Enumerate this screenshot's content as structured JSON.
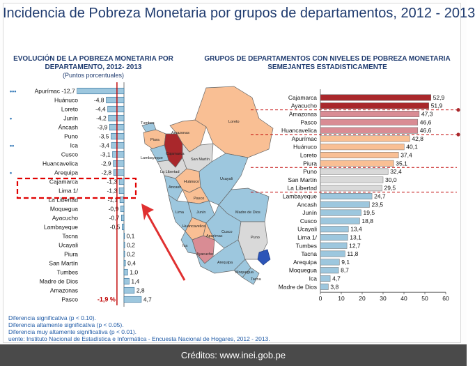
{
  "title": "Incidencia de Pobreza Monetaria por grupos de departamentos, 2012 - 2013",
  "credits": "Créditos: www.inei.gob.pe",
  "colors": {
    "title": "#1f3b6f",
    "bar_blue": "#9dc7de",
    "bar_border": "#2e6c96",
    "marker_red": "#c00000",
    "map_blue": "#9dc7de",
    "map_orange": "#f9bf94",
    "map_pink": "#d98c94",
    "map_dark_blue": "#2c55b8",
    "group_dark_red": "#a9272b",
    "group_pink": "#d98c94",
    "group_orange": "#f9bf94",
    "group_grey": "#d9d9d9",
    "group_blue": "#9dc7de"
  },
  "notes": {
    "n1": "Diferencia significativa (p < 0.10).",
    "n2": "Diferencia altamente significativa (p < 0.05).",
    "n3": "Diferencia muy altamente significativa (p < 0.01).",
    "source": "uente: Instituto Nacional de Estadística e Informática - Encuesta Nacional de Hogares, 2012 - 2013."
  },
  "map": {
    "labels": [
      "Tumbes",
      "Piura",
      "Amazonas",
      "Loreto",
      "Cajamarca",
      "Lambayeque",
      "La Libertad",
      "San Martín",
      "Ancash",
      "Huánuco",
      "Pasco",
      "Ucayali",
      "Lima",
      "Junín",
      "Madre de Dios",
      "Huancavelica",
      "Cusco",
      "Ica",
      "Apurímac",
      "Ayacucho",
      "Puno",
      "Arequipa",
      "Moquegua",
      "Tacna"
    ]
  },
  "chart_data": [
    {
      "type": "bar",
      "title": "EVOLUCIÓN DE LA POBREZA MONETARIA POR DEPARTAMENTO, 2012- 2013",
      "subtitle": "(Puntos porcentuales)",
      "orientation": "horizontal",
      "categories": [
        "Apurímac",
        "Huánuco",
        "Loreto",
        "Junín",
        "Áncash",
        "Puno",
        "Ica",
        "Cusco",
        "Huancavelica",
        "Arequipa",
        "Cajamarca",
        "Lima 1/",
        "La Libertad",
        "Moquegua",
        "Ayacucho",
        "Lambayeque",
        "Tacna",
        "Ucayali",
        "Piura",
        "San Martín",
        "Tumbes",
        "Madre de Dios",
        "Amazonas",
        "Pasco"
      ],
      "values": [
        -12.7,
        -4.8,
        -4.4,
        -4.2,
        -3.9,
        -3.5,
        -3.4,
        -3.1,
        -2.9,
        -2.8,
        -1.3,
        -1.3,
        -1.1,
        -0.9,
        -0.7,
        -0.5,
        0.1,
        0.2,
        0.2,
        0.4,
        1.0,
        1.4,
        2.8,
        4.7
      ],
      "labels": [
        "-12,7",
        "-4,8",
        "-4,4",
        "-4,2",
        "-3,9",
        "-3,5",
        "-3,4",
        "-3,1",
        "-2,9",
        "-2,8",
        "-1,3",
        "-1,3",
        "-1,1",
        "-0,9",
        "-0,7",
        "-0,5",
        "0,1",
        "0,2",
        "0,2",
        "0,4",
        "1,0",
        "1,4",
        "2,8",
        "4,7"
      ],
      "significance": [
        "•••",
        "",
        "",
        "•",
        "",
        "",
        "••",
        "",
        "",
        "•",
        "",
        "",
        "",
        "",
        "",
        "",
        "",
        "",
        "",
        "",
        "",
        "",
        "",
        ""
      ],
      "national_change": -1.9,
      "national_label": "-1,9 %",
      "highlighted": [
        "Cajamarca",
        "Lima 1/"
      ]
    },
    {
      "type": "bar",
      "title": "GRUPOS DE DEPARTAMENTOS CON NIVELES DE POBREZA MONETARIA SEMEJANTES ESTADISTICAMENTE",
      "orientation": "horizontal",
      "categories": [
        "Cajamarca",
        "Ayacucho",
        "Amazonas",
        "Pasco",
        "Huancavelica",
        "Apurímac",
        "Huánuco",
        "Loreto",
        "Piura",
        "Puno",
        "San Martín",
        "La Libertad",
        "Lambayeque",
        "Ancash",
        "Junín",
        "Cusco",
        "Ucayali",
        "Lima 1/",
        "Tumbes",
        "Tacna",
        "Arequipa",
        "Moquegua",
        "Ica",
        "Madre de Dios"
      ],
      "values": [
        52.9,
        51.9,
        47.3,
        46.6,
        46.6,
        42.8,
        40.1,
        37.4,
        35.1,
        32.4,
        30.0,
        29.5,
        24.7,
        23.5,
        19.5,
        18.8,
        13.4,
        13.1,
        12.7,
        11.8,
        9.1,
        8.7,
        4.7,
        3.8
      ],
      "labels": [
        "52,9",
        "51,9",
        "47,3",
        "46,6",
        "46,6",
        "42,8",
        "40,1",
        "37,4",
        "35,1",
        "32,4",
        "30,0",
        "29,5",
        "24,7",
        "23,5",
        "19,5",
        "18,8",
        "13,4",
        "13,1",
        "12,7",
        "11,8",
        "9,1",
        "8,7",
        "4,7",
        "3,8"
      ],
      "groups": [
        1,
        1,
        2,
        2,
        2,
        3,
        3,
        3,
        3,
        4,
        4,
        4,
        5,
        5,
        5,
        5,
        5,
        5,
        5,
        5,
        5,
        5,
        5,
        5
      ],
      "xlim": [
        0,
        60
      ],
      "xticks": [
        "0",
        "10",
        "20",
        "30",
        "40",
        "50",
        "60"
      ]
    }
  ]
}
